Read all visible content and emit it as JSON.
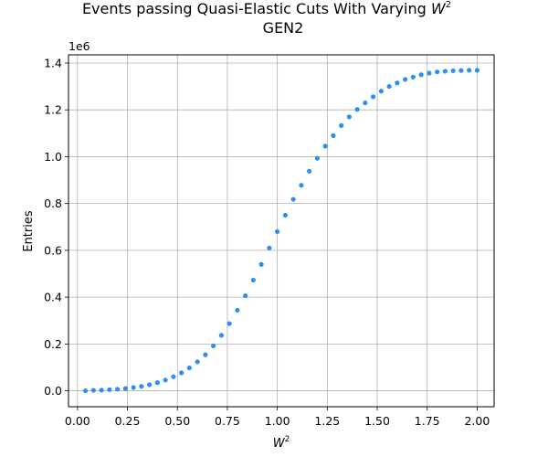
{
  "chart_data": {
    "type": "scatter",
    "title_line1": "Events passing Quasi-Elastic Cuts With Varying ",
    "title_var": "W",
    "title_sup": "2",
    "title_line2": "GEN2",
    "xlabel_var": "W",
    "xlabel_sup": "2",
    "ylabel": "Entries",
    "y_offset_label": "1e6",
    "y_multiplier": 1000000,
    "xlim": [
      -0.045,
      2.085
    ],
    "ylim": [
      -0.068,
      1.435
    ],
    "xticks": [
      0.0,
      0.25,
      0.5,
      0.75,
      1.0,
      1.25,
      1.5,
      1.75,
      2.0
    ],
    "xtick_labels": [
      "0.00",
      "0.25",
      "0.50",
      "0.75",
      "1.00",
      "1.25",
      "1.50",
      "1.75",
      "2.00"
    ],
    "yticks": [
      0.0,
      0.2,
      0.4,
      0.6,
      0.8,
      1.0,
      1.2,
      1.4
    ],
    "ytick_labels": [
      "0.0",
      "0.2",
      "0.4",
      "0.6",
      "0.8",
      "1.0",
      "1.2",
      "1.4"
    ],
    "grid": true,
    "marker_color": "#2e8ff0",
    "series": [
      {
        "x": [
          0.04,
          0.08,
          0.12,
          0.16,
          0.2,
          0.24,
          0.28,
          0.32,
          0.36,
          0.4,
          0.44,
          0.48,
          0.52,
          0.56,
          0.6,
          0.64,
          0.68,
          0.72,
          0.76,
          0.8,
          0.84,
          0.88,
          0.92,
          0.96,
          1.0,
          1.04,
          1.08,
          1.12,
          1.16,
          1.2,
          1.24,
          1.28,
          1.32,
          1.36,
          1.4,
          1.44,
          1.48,
          1.52,
          1.56,
          1.6,
          1.64,
          1.68,
          1.72,
          1.76,
          1.8,
          1.84,
          1.88,
          1.92,
          1.96,
          2.0
        ],
        "y": [
          0.0,
          0.002,
          0.003,
          0.005,
          0.007,
          0.01,
          0.014,
          0.019,
          0.026,
          0.035,
          0.046,
          0.06,
          0.077,
          0.098,
          0.124,
          0.154,
          0.192,
          0.237,
          0.287,
          0.344,
          0.406,
          0.473,
          0.54,
          0.61,
          0.68,
          0.75,
          0.818,
          0.878,
          0.938,
          0.993,
          1.045,
          1.09,
          1.133,
          1.17,
          1.202,
          1.23,
          1.256,
          1.28,
          1.3,
          1.315,
          1.33,
          1.34,
          1.35,
          1.357,
          1.362,
          1.365,
          1.367,
          1.368,
          1.369,
          1.369
        ]
      }
    ]
  }
}
